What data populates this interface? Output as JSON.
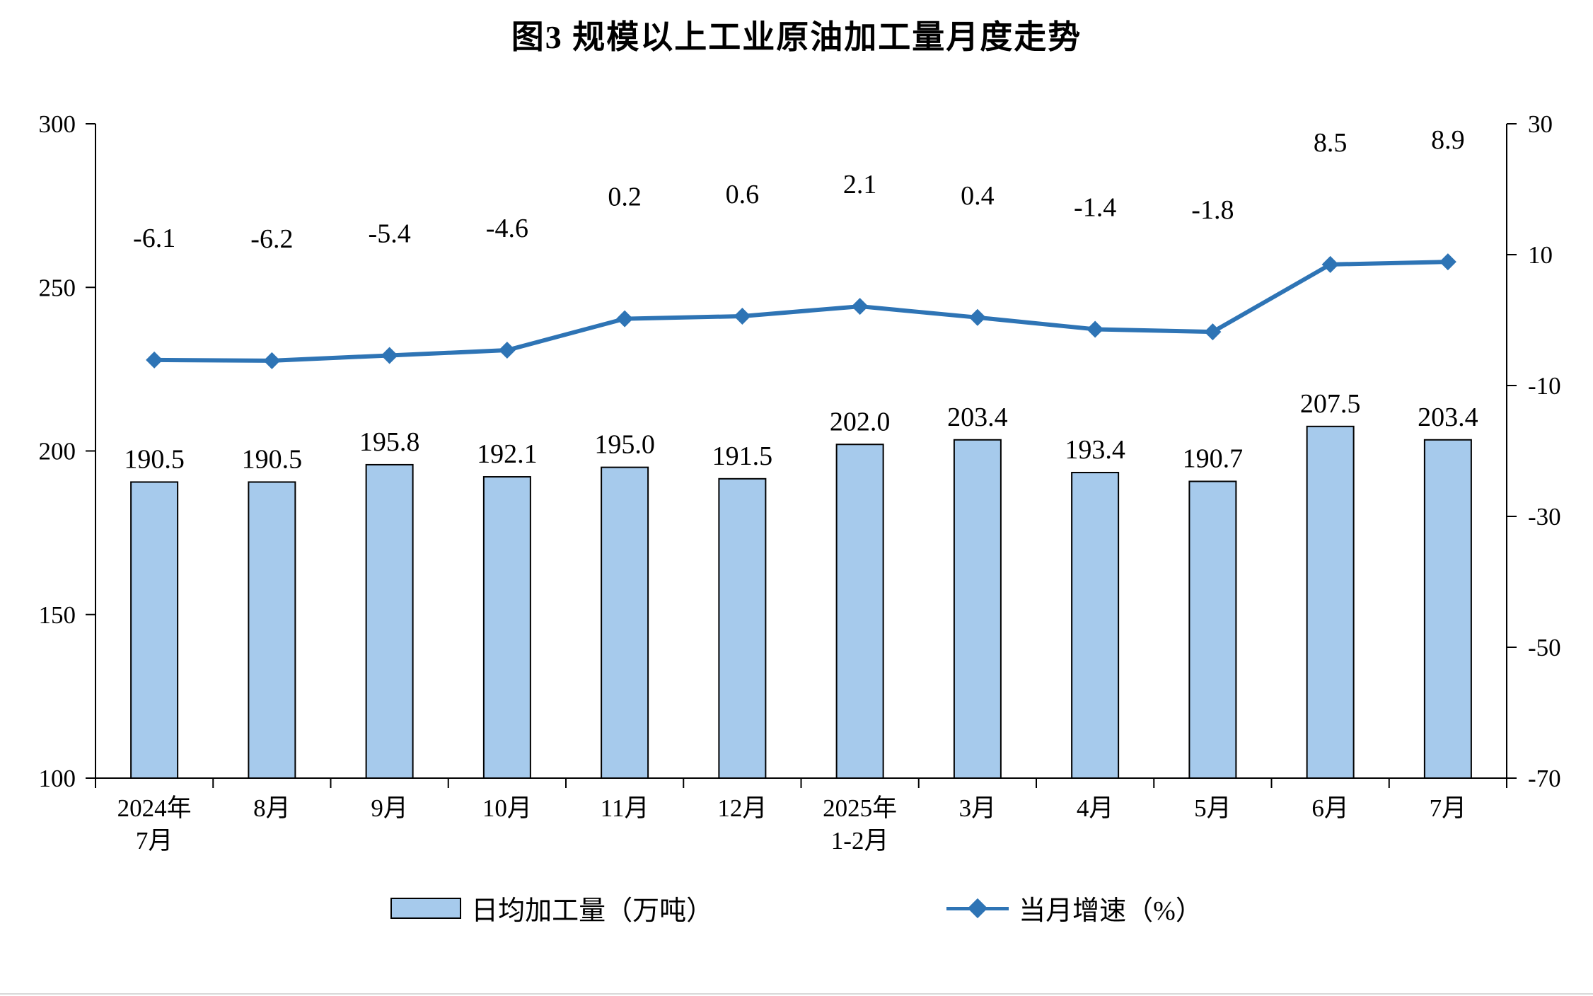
{
  "title": "图3  规模以上工业原油加工量月度走势",
  "legend": {
    "bar_label": "日均加工量（万吨）",
    "line_label": "当月增速（%）"
  },
  "chart_data": {
    "type": "bar+line",
    "title": "图3  规模以上工业原油加工量月度走势",
    "categories": [
      "2024年\n7月",
      "8月",
      "9月",
      "10月",
      "11月",
      "12月",
      "2025年\n1-2月",
      "3月",
      "4月",
      "5月",
      "6月",
      "7月"
    ],
    "series": [
      {
        "name": "日均加工量（万吨）",
        "type": "bar",
        "axis": "left",
        "values": [
          190.5,
          190.5,
          195.8,
          192.1,
          195.0,
          191.5,
          202.0,
          203.4,
          193.4,
          190.7,
          207.5,
          203.4
        ]
      },
      {
        "name": "当月增速（%）",
        "type": "line",
        "axis": "right",
        "values": [
          -6.1,
          -6.2,
          -5.4,
          -4.6,
          0.2,
          0.6,
          2.1,
          0.4,
          -1.4,
          -1.8,
          8.5,
          8.9
        ]
      }
    ],
    "left_axis": {
      "min": 100,
      "max": 300,
      "ticks": [
        100,
        150,
        200,
        250,
        300
      ]
    },
    "right_axis": {
      "min": -70,
      "max": 30,
      "ticks": [
        -70,
        -50,
        -30,
        -10,
        10,
        30
      ]
    },
    "grid": false,
    "legend_position": "bottom",
    "colors": {
      "bar_fill": "#A6CAEC",
      "bar_border": "#000000",
      "line": "#2E74B5",
      "text": "#000000"
    }
  }
}
